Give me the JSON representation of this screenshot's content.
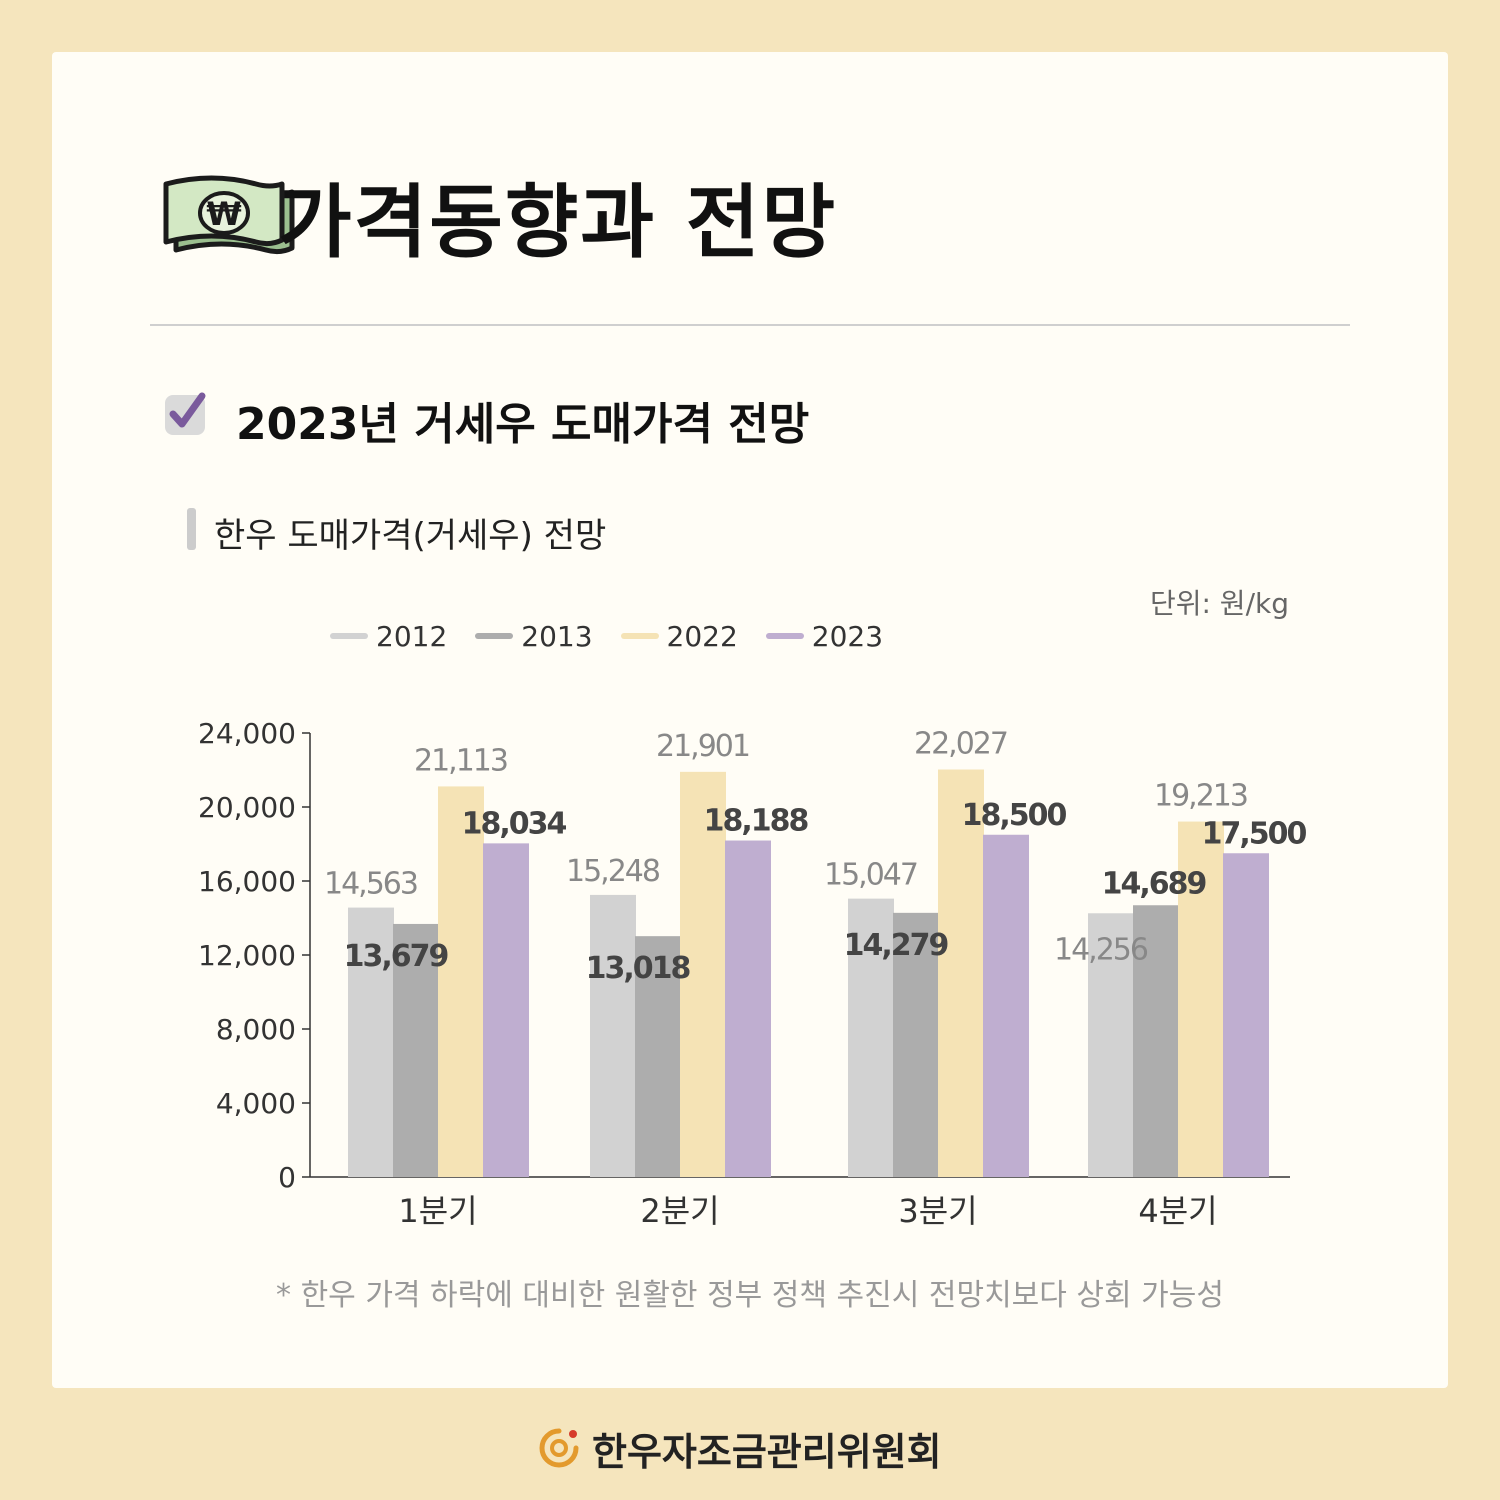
{
  "header": {
    "title": "가격동향과 전망",
    "title_icon": "money-bill-won-icon",
    "won_symbol": "₩"
  },
  "section": {
    "title": "2023년 거세우 도매가격 전망",
    "icon": "checkbox-checked-icon"
  },
  "subtitle": "한우 도매가격(거세우) 전망",
  "unit": "단위: 원/kg",
  "footnote": "* 한우 가격 하락에 대비한 원활한 정부 정책 추진시 전망치보다 상회 가능성",
  "brand": {
    "name": "한우자조금관리위원회",
    "logo": "hanwoo-logo-icon"
  },
  "colors": {
    "background": "#f5e5bd",
    "s2012": "#d2d2d2",
    "s2013": "#adadad",
    "s2022": "#f5e3b5",
    "s2023": "#bfaed0",
    "label_light": "#888888",
    "label_bold": "#444444"
  },
  "chart_data": {
    "type": "bar",
    "title": "한우 도매가격(거세우) 전망",
    "xlabel": "",
    "ylabel": "",
    "unit": "원/kg",
    "categories": [
      "1분기",
      "2분기",
      "3분기",
      "4분기"
    ],
    "series": [
      {
        "name": "2012",
        "values": [
          14563,
          15248,
          15047,
          14256
        ],
        "color": "#d2d2d2"
      },
      {
        "name": "2013",
        "values": [
          13679,
          13018,
          14279,
          14689
        ],
        "color": "#adadad"
      },
      {
        "name": "2022",
        "values": [
          21113,
          21901,
          22027,
          19213
        ],
        "color": "#f5e3b5"
      },
      {
        "name": "2023",
        "values": [
          18034,
          18188,
          18500,
          17500
        ],
        "color": "#bfaed0"
      }
    ],
    "ylim": [
      0,
      24000
    ],
    "yticks": [
      0,
      4000,
      8000,
      12000,
      16000,
      20000,
      24000
    ],
    "ytick_labels": [
      "0",
      "4,000",
      "8,000",
      "12,000",
      "16,000",
      "20,000",
      "24,000"
    ],
    "data_labels": [
      [
        "14,563",
        "15,248",
        "15,047",
        "14,256"
      ],
      [
        "13,679",
        "13,018",
        "14,279",
        "14,689"
      ],
      [
        "21,113",
        "21,901",
        "22,027",
        "19,213"
      ],
      [
        "18,034",
        "18,188",
        "18,500",
        "17,500"
      ]
    ],
    "bold_labels": [
      "2013",
      "2023"
    ],
    "legend_position": "top-left",
    "grid": false
  }
}
